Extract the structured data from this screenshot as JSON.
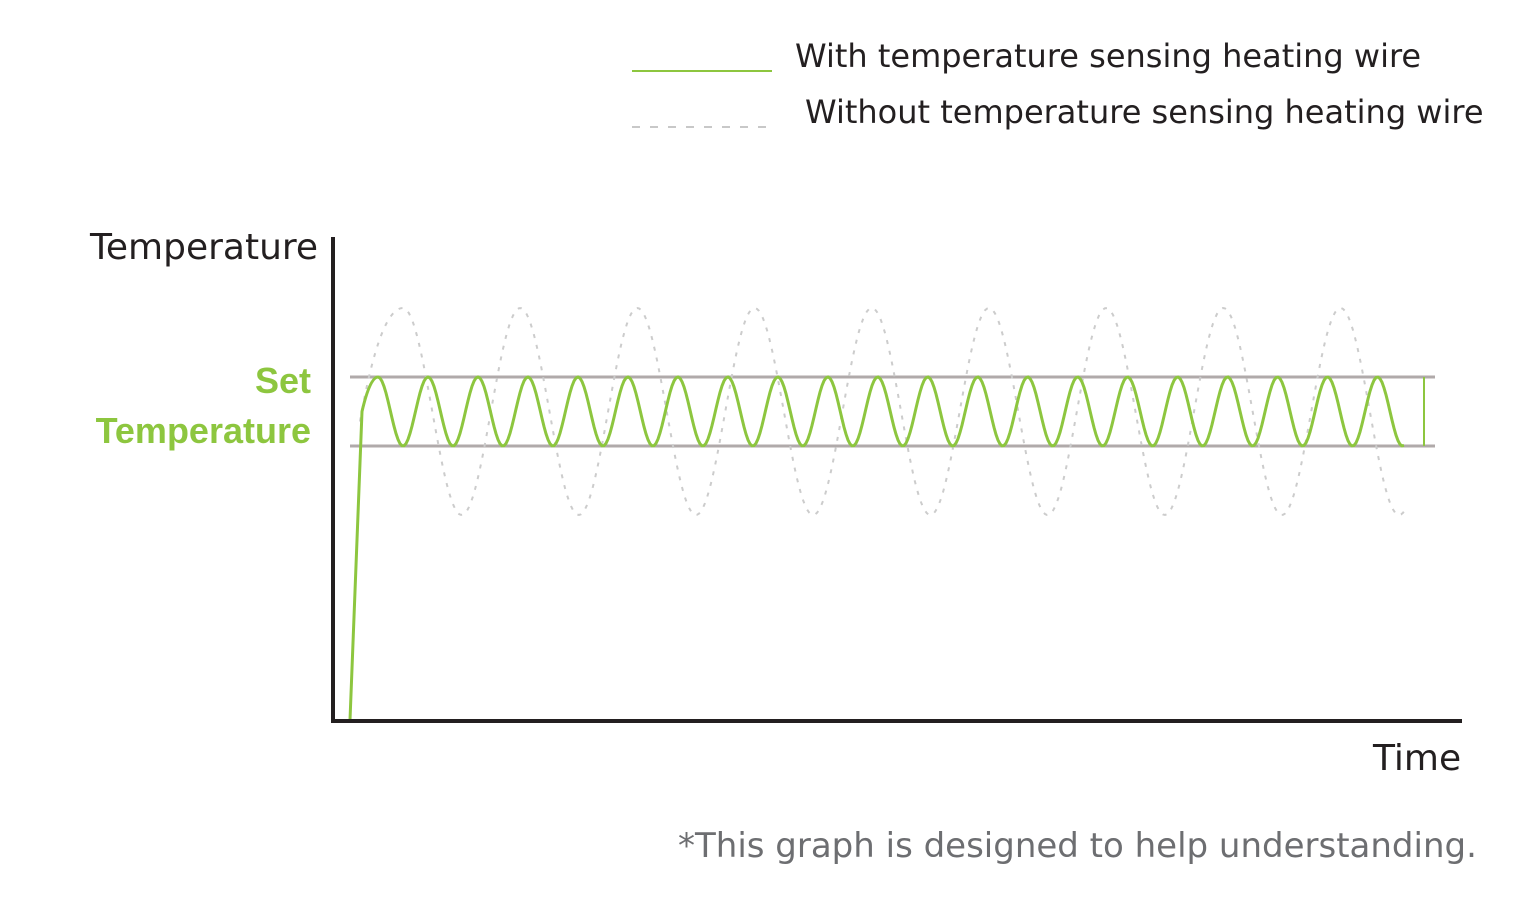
{
  "chart_data": {
    "type": "line",
    "xlabel": "Time",
    "ylabel": "Temperature",
    "band_label": [
      "Set",
      "Temperature"
    ],
    "series": [
      {
        "name": "With temperature sensing heating wire",
        "style": "solid",
        "color": "#8dc63f",
        "cycles": 21,
        "band_fraction": [
          0.0,
          1.0
        ]
      },
      {
        "name": "Without temperature sensing heating wire",
        "style": "dashed",
        "color": "#c8c8c8",
        "cycles": 9,
        "band_fraction": [
          -1.0,
          2.0
        ]
      }
    ],
    "set_band_color": "#b0aaaa",
    "footnote": "*This graph is designed to help understanding."
  }
}
